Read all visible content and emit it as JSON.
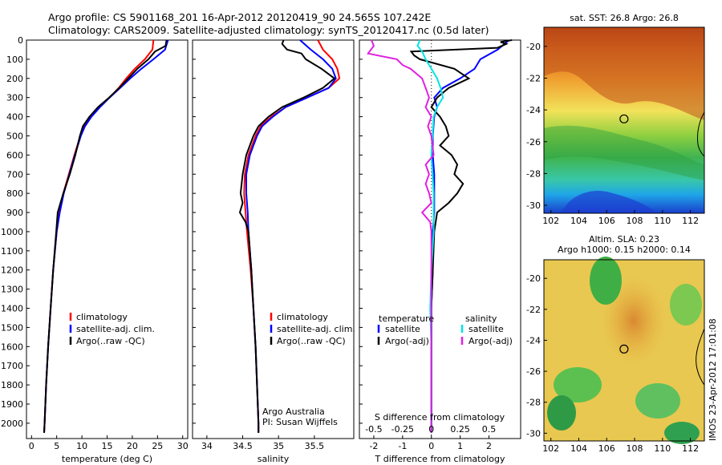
{
  "header": {
    "line1": "Argo profile: CS 5901168_201 16-Apr-2012 20120419_90 24.565S 107.242E",
    "line2": "Climatology: CARS2009. Satellite-adjusted climatology: synTS_20120417.nc (0.5d later)"
  },
  "colors": {
    "climatology": "#ff0000",
    "satellite": "#0000ff",
    "argo": "#000000",
    "salinity_satellite": "#00e5e5",
    "salinity_argo": "#e020e0"
  },
  "chart_data": [
    {
      "type": "line",
      "panel": "temperature",
      "xlabel": "temperature (deg C)",
      "ylabel": "",
      "xlim": [
        -1,
        31
      ],
      "ylim": [
        2080,
        0
      ],
      "xticks": [
        "0",
        "5",
        "10",
        "15",
        "20",
        "25",
        "30"
      ],
      "yticks": [
        "0",
        "100",
        "200",
        "300",
        "400",
        "500",
        "600",
        "700",
        "800",
        "900",
        "1000",
        "1100",
        "1200",
        "1300",
        "1400",
        "1500",
        "1600",
        "1700",
        "1800",
        "1900",
        "2000"
      ],
      "legend": [
        "climatology",
        "satellite-adj. clim.",
        "Argo(..raw -QC)"
      ],
      "series": [
        {
          "name": "climatology",
          "depth": [
            0,
            50,
            100,
            150,
            200,
            250,
            300,
            350,
            400,
            450,
            500,
            600,
            700,
            800,
            900,
            1000,
            1200,
            1400,
            1600,
            1800,
            2000,
            2050
          ],
          "values": [
            24.2,
            24.0,
            22.5,
            20.5,
            18.8,
            17.3,
            15.5,
            13.5,
            11.8,
            10.5,
            9.7,
            8.5,
            7.4,
            6.3,
            5.5,
            5.0,
            4.3,
            3.8,
            3.3,
            2.9,
            2.6,
            2.5
          ]
        },
        {
          "name": "satellite-adj. clim.",
          "depth": [
            0,
            50,
            100,
            150,
            200,
            250,
            300,
            350,
            400,
            450,
            500,
            600,
            700,
            800,
            900,
            1000,
            1200,
            1400,
            1600,
            1800,
            2000,
            2050
          ],
          "values": [
            27.1,
            26.5,
            24.2,
            21.8,
            19.6,
            17.6,
            15.5,
            13.6,
            11.9,
            10.6,
            9.8,
            8.6,
            7.5,
            6.4,
            5.6,
            5.0,
            4.3,
            3.8,
            3.3,
            2.9,
            2.6,
            2.5
          ]
        },
        {
          "name": "Argo(..raw -QC)",
          "depth": [
            0,
            30,
            60,
            100,
            150,
            200,
            250,
            300,
            350,
            400,
            450,
            500,
            600,
            700,
            800,
            900,
            1000,
            1200,
            1400,
            1600,
            1800,
            2000,
            2050
          ],
          "values": [
            26.8,
            26.6,
            24.5,
            23.2,
            21.0,
            19.2,
            17.4,
            15.4,
            13.2,
            11.5,
            10.2,
            9.6,
            8.7,
            7.6,
            6.3,
            5.2,
            4.9,
            4.3,
            3.8,
            3.3,
            2.9,
            2.6,
            2.5
          ]
        }
      ]
    },
    {
      "type": "line",
      "panel": "salinity",
      "xlabel": "salinity",
      "ylabel": "",
      "xlim": [
        33.8,
        36.05
      ],
      "ylim": [
        2080,
        0
      ],
      "xticks": [
        "34",
        "34.5",
        "35",
        "35.5"
      ],
      "legend": [
        "climatology",
        "satellite-adj. clim.",
        "Argo(..raw -QC)"
      ],
      "annotation": [
        "Argo Australia",
        "PI: Susan Wijffels"
      ],
      "series": [
        {
          "name": "climatology",
          "depth": [
            0,
            50,
            100,
            150,
            200,
            250,
            300,
            350,
            400,
            450,
            500,
            600,
            700,
            800,
            900,
            1000,
            1200,
            1400,
            1600,
            1800,
            2000,
            2050
          ],
          "values": [
            35.55,
            35.62,
            35.75,
            35.82,
            35.85,
            35.7,
            35.4,
            35.1,
            34.9,
            34.75,
            34.68,
            34.58,
            34.53,
            34.52,
            34.54,
            34.56,
            34.61,
            34.65,
            34.68,
            34.7,
            34.72,
            34.72
          ]
        },
        {
          "name": "satellite-adj. clim.",
          "depth": [
            0,
            50,
            100,
            150,
            200,
            250,
            300,
            350,
            400,
            450,
            500,
            600,
            700,
            800,
            900,
            1000,
            1200,
            1400,
            1600,
            1800,
            2000,
            2050
          ],
          "values": [
            35.3,
            35.45,
            35.62,
            35.75,
            35.8,
            35.7,
            35.4,
            35.1,
            34.92,
            34.77,
            34.7,
            34.6,
            34.55,
            34.55,
            34.57,
            34.58,
            34.62,
            34.65,
            34.68,
            34.7,
            34.72,
            34.72
          ]
        },
        {
          "name": "Argo(..raw -QC)",
          "depth": [
            0,
            20,
            50,
            70,
            100,
            150,
            200,
            250,
            300,
            350,
            400,
            450,
            500,
            600,
            700,
            800,
            850,
            900,
            950,
            1000,
            1200,
            1400,
            1600,
            1800,
            2000,
            2050
          ],
          "values": [
            35.07,
            35.05,
            35.12,
            35.32,
            35.38,
            35.6,
            35.78,
            35.62,
            35.35,
            35.05,
            34.86,
            34.72,
            34.65,
            34.55,
            34.5,
            34.47,
            34.5,
            34.46,
            34.54,
            34.58,
            34.62,
            34.65,
            34.68,
            34.7,
            34.72,
            34.72
          ]
        }
      ]
    },
    {
      "type": "line",
      "panel": "difference",
      "xlabel": "T difference from climatology",
      "xlabel_top": "S difference from climatology",
      "xlim": [
        -2.5,
        3.1
      ],
      "ylim": [
        2080,
        0
      ],
      "xticks": [
        "-2",
        "-1",
        "0",
        "1",
        "2"
      ],
      "xticks_s": [
        "-0.5",
        "-0.25",
        "0",
        "0.25",
        "0.5"
      ],
      "legend": [
        "temperature",
        "satellite",
        "Argo(-adj)",
        "salinity",
        "satellite",
        "Argo(-adj)"
      ],
      "series": [
        {
          "name": "temperature satellite",
          "depth": [
            0,
            50,
            100,
            150,
            200,
            250,
            300,
            350,
            400,
            500,
            600,
            700,
            800,
            900,
            1000,
            1200,
            1400,
            1600,
            1800,
            2000,
            2050
          ],
          "values": [
            2.7,
            2.3,
            1.7,
            1.5,
            1.0,
            0.4,
            0.1,
            0.2,
            0.1,
            0.05,
            0.05,
            0.1,
            0.1,
            0.1,
            0.05,
            0.05,
            0.0,
            0.0,
            0.0,
            0.0,
            0.0
          ]
        },
        {
          "name": "temperature Argo(-adj)",
          "depth": [
            0,
            10,
            20,
            40,
            60,
            80,
            100,
            150,
            200,
            250,
            300,
            350,
            400,
            450,
            500,
            550,
            600,
            650,
            700,
            750,
            800,
            850,
            900,
            1000,
            1200,
            1400,
            1600,
            1800,
            2000,
            2050
          ],
          "values": [
            2.8,
            2.4,
            2.6,
            2.3,
            -0.7,
            -0.6,
            -0.4,
            0.8,
            1.3,
            0.6,
            0.2,
            0.0,
            0.3,
            0.5,
            0.6,
            0.3,
            0.7,
            0.9,
            0.8,
            1.1,
            0.9,
            0.6,
            0.2,
            0.1,
            0.05,
            0.0,
            0.0,
            0.0,
            0.0,
            0.0
          ]
        },
        {
          "name": "salinity satellite",
          "depth": [
            0,
            30,
            60,
            100,
            150,
            200,
            250,
            300,
            350,
            400,
            500,
            600,
            700,
            800,
            900,
            1000,
            1200,
            1400,
            1600,
            1800,
            2000,
            2050
          ],
          "values": [
            -0.1,
            -0.12,
            -0.08,
            -0.05,
            0.0,
            0.05,
            0.08,
            0.1,
            0.05,
            0.02,
            0.01,
            0.0,
            0.01,
            0.02,
            0.02,
            0.02,
            0.0,
            -0.01,
            0.0,
            0.0,
            0.0,
            0.0
          ]
        },
        {
          "name": "salinity Argo(-adj)",
          "depth": [
            0,
            30,
            70,
            100,
            130,
            150,
            200,
            250,
            300,
            350,
            400,
            450,
            500,
            600,
            650,
            700,
            750,
            800,
            850,
            900,
            950,
            1000,
            1200,
            1400,
            1600,
            1800,
            2000,
            2050
          ],
          "values": [
            -0.52,
            -0.5,
            -0.55,
            -0.3,
            -0.25,
            -0.18,
            -0.08,
            -0.05,
            -0.02,
            -0.05,
            0.0,
            -0.03,
            0.0,
            0.02,
            -0.05,
            -0.02,
            -0.05,
            -0.02,
            0.0,
            -0.08,
            -0.01,
            0.0,
            0.0,
            0.0,
            0.0,
            0.0,
            0.0,
            0.0
          ]
        }
      ]
    },
    {
      "type": "heatmap",
      "panel": "sst-map",
      "title": "sat. SST: 26.8 Argo: 26.8",
      "xticks": [
        "102",
        "104",
        "106",
        "108",
        "110",
        "112"
      ],
      "yticks": [
        "-20",
        "-22",
        "-24",
        "-26",
        "-28",
        "-30"
      ],
      "xlim": [
        101.5,
        113
      ],
      "ylim": [
        -30.5,
        -18.8
      ],
      "marker": {
        "lon": 107.242,
        "lat": -24.565
      }
    },
    {
      "type": "heatmap",
      "panel": "sla-map",
      "title": "Altim. SLA: 0.23",
      "subtitle": "Argo h1000: 0.15 h2000: 0.14",
      "xticks": [
        "102",
        "104",
        "106",
        "108",
        "110",
        "112"
      ],
      "yticks": [
        "-20",
        "-22",
        "-24",
        "-26",
        "-28",
        "-30"
      ],
      "xlim": [
        101.5,
        113
      ],
      "ylim": [
        -30.5,
        -18.8
      ],
      "marker": {
        "lon": 107.242,
        "lat": -24.565
      }
    }
  ],
  "footer": {
    "stamp": "IMOS 23-Apr-2012 17:01:08"
  }
}
